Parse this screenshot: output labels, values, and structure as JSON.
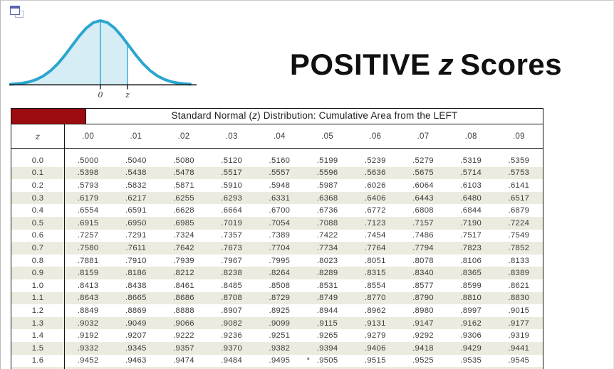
{
  "icons": {
    "top_left": "duplicate-window-icon"
  },
  "distribution_figure": {
    "mean_label": "0",
    "z_label": "z",
    "curve_color": "#2ba6cf",
    "fill_color": "#d6edf5",
    "shaded_region": "cumulative area from the left up to z"
  },
  "main_title": {
    "part1": "POSITIVE",
    "z": "z",
    "part2": "Scores"
  },
  "table": {
    "banner": {
      "title_pre": "Standard Normal (",
      "title_z": "z",
      "title_post": ") Distribution: Cumulative Area from the LEFT",
      "red_block_color": "#9b0c10"
    },
    "columns": [
      "z",
      ".00",
      ".01",
      ".02",
      ".03",
      ".04",
      ".05",
      ".06",
      ".07",
      ".08",
      ".09"
    ],
    "stripe_color": "#ecebdf",
    "footnote_marker": "*",
    "rows": [
      {
        "z": "0.0",
        "values": [
          ".5000",
          ".5040",
          ".5080",
          ".5120",
          ".5160",
          ".5199",
          ".5239",
          ".5279",
          ".5319",
          ".5359"
        ]
      },
      {
        "z": "0.1",
        "values": [
          ".5398",
          ".5438",
          ".5478",
          ".5517",
          ".5557",
          ".5596",
          ".5636",
          ".5675",
          ".5714",
          ".5753"
        ]
      },
      {
        "z": "0.2",
        "values": [
          ".5793",
          ".5832",
          ".5871",
          ".5910",
          ".5948",
          ".5987",
          ".6026",
          ".6064",
          ".6103",
          ".6141"
        ]
      },
      {
        "z": "0.3",
        "values": [
          ".6179",
          ".6217",
          ".6255",
          ".6293",
          ".6331",
          ".6368",
          ".6406",
          ".6443",
          ".6480",
          ".6517"
        ]
      },
      {
        "z": "0.4",
        "values": [
          ".6554",
          ".6591",
          ".6628",
          ".6664",
          ".6700",
          ".6736",
          ".6772",
          ".6808",
          ".6844",
          ".6879"
        ]
      },
      {
        "z": "0.5",
        "values": [
          ".6915",
          ".6950",
          ".6985",
          ".7019",
          ".7054",
          ".7088",
          ".7123",
          ".7157",
          ".7190",
          ".7224"
        ]
      },
      {
        "z": "0.6",
        "values": [
          ".7257",
          ".7291",
          ".7324",
          ".7357",
          ".7389",
          ".7422",
          ".7454",
          ".7486",
          ".7517",
          ".7549"
        ]
      },
      {
        "z": "0.7",
        "values": [
          ".7580",
          ".7611",
          ".7642",
          ".7673",
          ".7704",
          ".7734",
          ".7764",
          ".7794",
          ".7823",
          ".7852"
        ]
      },
      {
        "z": "0.8",
        "values": [
          ".7881",
          ".7910",
          ".7939",
          ".7967",
          ".7995",
          ".8023",
          ".8051",
          ".8078",
          ".8106",
          ".8133"
        ]
      },
      {
        "z": "0.9",
        "values": [
          ".8159",
          ".8186",
          ".8212",
          ".8238",
          ".8264",
          ".8289",
          ".8315",
          ".8340",
          ".8365",
          ".8389"
        ]
      },
      {
        "z": "1.0",
        "values": [
          ".8413",
          ".8438",
          ".8461",
          ".8485",
          ".8508",
          ".8531",
          ".8554",
          ".8577",
          ".8599",
          ".8621"
        ]
      },
      {
        "z": "1.1",
        "values": [
          ".8643",
          ".8665",
          ".8686",
          ".8708",
          ".8729",
          ".8749",
          ".8770",
          ".8790",
          ".8810",
          ".8830"
        ]
      },
      {
        "z": "1.2",
        "values": [
          ".8849",
          ".8869",
          ".8888",
          ".8907",
          ".8925",
          ".8944",
          ".8962",
          ".8980",
          ".8997",
          ".9015"
        ]
      },
      {
        "z": "1.3",
        "values": [
          ".9032",
          ".9049",
          ".9066",
          ".9082",
          ".9099",
          ".9115",
          ".9131",
          ".9147",
          ".9162",
          ".9177"
        ]
      },
      {
        "z": "1.4",
        "values": [
          ".9192",
          ".9207",
          ".9222",
          ".9236",
          ".9251",
          ".9265",
          ".9279",
          ".9292",
          ".9306",
          ".9319"
        ]
      },
      {
        "z": "1.5",
        "values": [
          ".9332",
          ".9345",
          ".9357",
          ".9370",
          ".9382",
          ".9394",
          ".9406",
          ".9418",
          ".9429",
          ".9441"
        ]
      },
      {
        "z": "1.6",
        "values": [
          ".9452",
          ".9463",
          ".9474",
          ".9484",
          ".9495",
          ".9505",
          ".9515",
          ".9525",
          ".9535",
          ".9545"
        ],
        "marker": "*"
      }
    ]
  }
}
